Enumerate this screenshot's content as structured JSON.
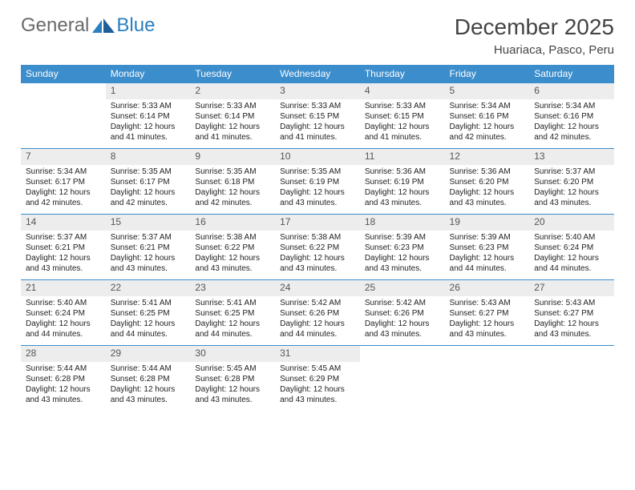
{
  "logo": {
    "text1": "General",
    "text2": "Blue"
  },
  "title": "December 2025",
  "location": "Huariaca, Pasco, Peru",
  "colors": {
    "header_bg": "#3c8dcc",
    "header_text": "#ffffff",
    "daynum_bg": "#ededed",
    "row_border": "#3c8dcc",
    "logo_general": "#6a6a6a",
    "logo_blue": "#2a7fbf"
  },
  "weekdays": [
    "Sunday",
    "Monday",
    "Tuesday",
    "Wednesday",
    "Thursday",
    "Friday",
    "Saturday"
  ],
  "weeks": [
    [
      {
        "n": "",
        "lines": []
      },
      {
        "n": "1",
        "lines": [
          "Sunrise: 5:33 AM",
          "Sunset: 6:14 PM",
          "Daylight: 12 hours and 41 minutes."
        ]
      },
      {
        "n": "2",
        "lines": [
          "Sunrise: 5:33 AM",
          "Sunset: 6:14 PM",
          "Daylight: 12 hours and 41 minutes."
        ]
      },
      {
        "n": "3",
        "lines": [
          "Sunrise: 5:33 AM",
          "Sunset: 6:15 PM",
          "Daylight: 12 hours and 41 minutes."
        ]
      },
      {
        "n": "4",
        "lines": [
          "Sunrise: 5:33 AM",
          "Sunset: 6:15 PM",
          "Daylight: 12 hours and 41 minutes."
        ]
      },
      {
        "n": "5",
        "lines": [
          "Sunrise: 5:34 AM",
          "Sunset: 6:16 PM",
          "Daylight: 12 hours and 42 minutes."
        ]
      },
      {
        "n": "6",
        "lines": [
          "Sunrise: 5:34 AM",
          "Sunset: 6:16 PM",
          "Daylight: 12 hours and 42 minutes."
        ]
      }
    ],
    [
      {
        "n": "7",
        "lines": [
          "Sunrise: 5:34 AM",
          "Sunset: 6:17 PM",
          "Daylight: 12 hours and 42 minutes."
        ]
      },
      {
        "n": "8",
        "lines": [
          "Sunrise: 5:35 AM",
          "Sunset: 6:17 PM",
          "Daylight: 12 hours and 42 minutes."
        ]
      },
      {
        "n": "9",
        "lines": [
          "Sunrise: 5:35 AM",
          "Sunset: 6:18 PM",
          "Daylight: 12 hours and 42 minutes."
        ]
      },
      {
        "n": "10",
        "lines": [
          "Sunrise: 5:35 AM",
          "Sunset: 6:19 PM",
          "Daylight: 12 hours and 43 minutes."
        ]
      },
      {
        "n": "11",
        "lines": [
          "Sunrise: 5:36 AM",
          "Sunset: 6:19 PM",
          "Daylight: 12 hours and 43 minutes."
        ]
      },
      {
        "n": "12",
        "lines": [
          "Sunrise: 5:36 AM",
          "Sunset: 6:20 PM",
          "Daylight: 12 hours and 43 minutes."
        ]
      },
      {
        "n": "13",
        "lines": [
          "Sunrise: 5:37 AM",
          "Sunset: 6:20 PM",
          "Daylight: 12 hours and 43 minutes."
        ]
      }
    ],
    [
      {
        "n": "14",
        "lines": [
          "Sunrise: 5:37 AM",
          "Sunset: 6:21 PM",
          "Daylight: 12 hours and 43 minutes."
        ]
      },
      {
        "n": "15",
        "lines": [
          "Sunrise: 5:37 AM",
          "Sunset: 6:21 PM",
          "Daylight: 12 hours and 43 minutes."
        ]
      },
      {
        "n": "16",
        "lines": [
          "Sunrise: 5:38 AM",
          "Sunset: 6:22 PM",
          "Daylight: 12 hours and 43 minutes."
        ]
      },
      {
        "n": "17",
        "lines": [
          "Sunrise: 5:38 AM",
          "Sunset: 6:22 PM",
          "Daylight: 12 hours and 43 minutes."
        ]
      },
      {
        "n": "18",
        "lines": [
          "Sunrise: 5:39 AM",
          "Sunset: 6:23 PM",
          "Daylight: 12 hours and 43 minutes."
        ]
      },
      {
        "n": "19",
        "lines": [
          "Sunrise: 5:39 AM",
          "Sunset: 6:23 PM",
          "Daylight: 12 hours and 44 minutes."
        ]
      },
      {
        "n": "20",
        "lines": [
          "Sunrise: 5:40 AM",
          "Sunset: 6:24 PM",
          "Daylight: 12 hours and 44 minutes."
        ]
      }
    ],
    [
      {
        "n": "21",
        "lines": [
          "Sunrise: 5:40 AM",
          "Sunset: 6:24 PM",
          "Daylight: 12 hours and 44 minutes."
        ]
      },
      {
        "n": "22",
        "lines": [
          "Sunrise: 5:41 AM",
          "Sunset: 6:25 PM",
          "Daylight: 12 hours and 44 minutes."
        ]
      },
      {
        "n": "23",
        "lines": [
          "Sunrise: 5:41 AM",
          "Sunset: 6:25 PM",
          "Daylight: 12 hours and 44 minutes."
        ]
      },
      {
        "n": "24",
        "lines": [
          "Sunrise: 5:42 AM",
          "Sunset: 6:26 PM",
          "Daylight: 12 hours and 44 minutes."
        ]
      },
      {
        "n": "25",
        "lines": [
          "Sunrise: 5:42 AM",
          "Sunset: 6:26 PM",
          "Daylight: 12 hours and 43 minutes."
        ]
      },
      {
        "n": "26",
        "lines": [
          "Sunrise: 5:43 AM",
          "Sunset: 6:27 PM",
          "Daylight: 12 hours and 43 minutes."
        ]
      },
      {
        "n": "27",
        "lines": [
          "Sunrise: 5:43 AM",
          "Sunset: 6:27 PM",
          "Daylight: 12 hours and 43 minutes."
        ]
      }
    ],
    [
      {
        "n": "28",
        "lines": [
          "Sunrise: 5:44 AM",
          "Sunset: 6:28 PM",
          "Daylight: 12 hours and 43 minutes."
        ]
      },
      {
        "n": "29",
        "lines": [
          "Sunrise: 5:44 AM",
          "Sunset: 6:28 PM",
          "Daylight: 12 hours and 43 minutes."
        ]
      },
      {
        "n": "30",
        "lines": [
          "Sunrise: 5:45 AM",
          "Sunset: 6:28 PM",
          "Daylight: 12 hours and 43 minutes."
        ]
      },
      {
        "n": "31",
        "lines": [
          "Sunrise: 5:45 AM",
          "Sunset: 6:29 PM",
          "Daylight: 12 hours and 43 minutes."
        ]
      },
      {
        "n": "",
        "lines": []
      },
      {
        "n": "",
        "lines": []
      },
      {
        "n": "",
        "lines": []
      }
    ]
  ]
}
